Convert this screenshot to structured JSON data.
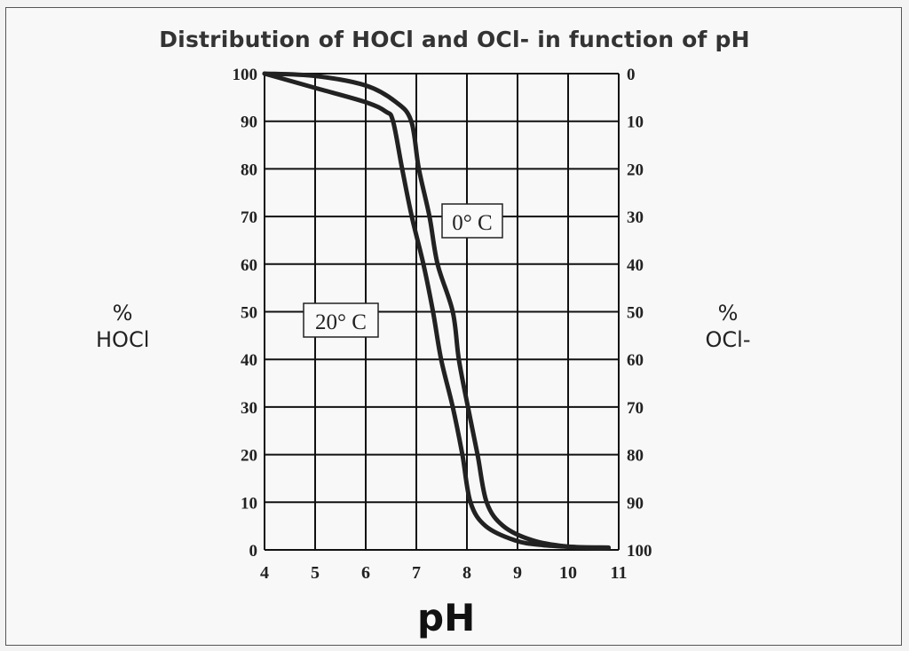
{
  "chart_data": {
    "type": "line",
    "title": "Distribution of HOCl  and  OCl- in function of pH",
    "xlabel": "pH",
    "ylabel_left": {
      "symbol": "%",
      "name": "HOCl"
    },
    "ylabel_right": {
      "symbol": "%",
      "name": "OCl-"
    },
    "xlim": [
      4,
      11
    ],
    "ylim": [
      0,
      100
    ],
    "y2lim": [
      100,
      0
    ],
    "x_ticks": [
      "4",
      "5",
      "6",
      "7",
      "8",
      "9",
      "10",
      "11"
    ],
    "y_ticks": [
      "0",
      "10",
      "20",
      "30",
      "40",
      "50",
      "60",
      "70",
      "80",
      "90",
      "100"
    ],
    "y2_ticks": [
      "100",
      "90",
      "80",
      "70",
      "60",
      "50",
      "40",
      "30",
      "20",
      "10",
      "0"
    ],
    "grid": true,
    "series": [
      {
        "name": "0° C",
        "x": [
          4,
          5,
          6,
          6.6,
          6.9,
          7.05,
          7.26,
          7.42,
          7.72,
          7.84,
          8.02,
          8.21,
          8.39,
          8.72,
          9.3,
          10,
          10.8
        ],
        "y": [
          100,
          99.5,
          97.5,
          94,
          90,
          80,
          70,
          60,
          50,
          40,
          30,
          20,
          10,
          5,
          2,
          0.7,
          0.5
        ]
      },
      {
        "name": "20° C",
        "x": [
          4,
          5,
          6,
          6.4,
          6.54,
          6.72,
          6.91,
          7.14,
          7.33,
          7.49,
          7.72,
          7.91,
          8.07,
          8.37,
          8.95,
          9.5,
          10.5,
          10.8
        ],
        "y": [
          100,
          97,
          94,
          92,
          90,
          80,
          70,
          60,
          50,
          40,
          30,
          20,
          10,
          5,
          2,
          1,
          0.4,
          0.4
        ]
      }
    ],
    "colors": {
      "lines": "#222222",
      "grid": "#111111"
    }
  }
}
